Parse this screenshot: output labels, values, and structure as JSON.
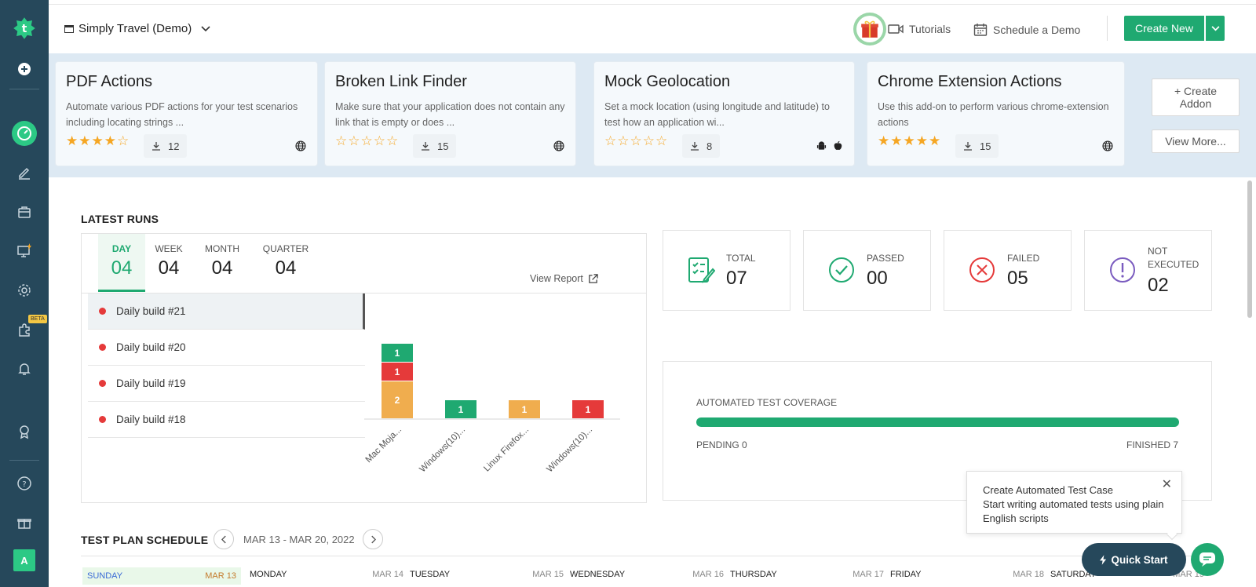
{
  "header": {
    "project_name": "Simply Travel (Demo)",
    "tutorials": "Tutorials",
    "schedule_demo": "Schedule a Demo",
    "create_new": "Create New"
  },
  "sidebar": {
    "avatar_letter": "A",
    "beta_badge": "BETA"
  },
  "addons": [
    {
      "title": "PDF Actions",
      "desc": "Automate various PDF actions for your test scenarios including locating strings ...",
      "stars": "★★★★☆",
      "downloads": "12",
      "platform": "web"
    },
    {
      "title": "Broken Link Finder",
      "desc": "Make sure that your application does not contain any link that is empty or does ...",
      "stars": "☆☆☆☆☆",
      "downloads": "15",
      "platform": "web"
    },
    {
      "title": "Mock Geolocation",
      "desc": "Set a mock location (using longitude and latitude) to test how an application wi...",
      "stars": "☆☆☆☆☆",
      "downloads": "8",
      "platform": "android-apple"
    },
    {
      "title": "Chrome Extension Actions",
      "desc": "Use this add-on to perform various chrome-extension actions",
      "stars": "★★★★★",
      "downloads": "15",
      "platform": "web"
    }
  ],
  "addon_buttons": {
    "create": "+ Create Addon",
    "view_more": "View More..."
  },
  "latest_runs": {
    "title": "LATEST RUNS",
    "tabs": [
      {
        "label": "DAY",
        "value": "04"
      },
      {
        "label": "WEEK",
        "value": "04"
      },
      {
        "label": "MONTH",
        "value": "04"
      },
      {
        "label": "QUARTER",
        "value": "04"
      }
    ],
    "view_report": "View Report",
    "builds": [
      "Daily build #21",
      "Daily build #20",
      "Daily build #19",
      "Daily build #18"
    ]
  },
  "chart_data": {
    "type": "bar",
    "stacked": true,
    "categories": [
      "Mac Moja...",
      "Windows(10)...",
      "Linux Firefox...",
      "Windows(10)..."
    ],
    "series": [
      {
        "color": "#f0ad4e",
        "values": [
          2,
          0,
          1,
          0
        ]
      },
      {
        "color": "#e53a3a",
        "values": [
          1,
          0,
          0,
          1
        ]
      },
      {
        "color": "#1fa971",
        "values": [
          1,
          1,
          0,
          0
        ]
      }
    ]
  },
  "stats": {
    "total_label": "TOTAL",
    "total": "07",
    "passed_label": "PASSED",
    "passed": "00",
    "failed_label": "FAILED",
    "failed": "05",
    "not_executed_label_1": "NOT",
    "not_executed_label_2": "EXECUTED",
    "not_executed": "02"
  },
  "coverage": {
    "title": "AUTOMATED TEST COVERAGE",
    "pending": "PENDING 0",
    "finished": "FINISHED 7",
    "fraction": 1.0
  },
  "test_plan": {
    "title": "TEST PLAN SCHEDULE",
    "range": "MAR 13 - MAR 20, 2022",
    "days": [
      {
        "name": "SUNDAY",
        "date": "MAR 13"
      },
      {
        "name": "MONDAY",
        "date": "MAR 14"
      },
      {
        "name": "TUESDAY",
        "date": "MAR 15"
      },
      {
        "name": "WEDNESDAY",
        "date": "MAR 16"
      },
      {
        "name": "THURSDAY",
        "date": "MAR 17"
      },
      {
        "name": "FRIDAY",
        "date": "MAR 18"
      },
      {
        "name": "SATURDAY",
        "date": "MAR 19"
      }
    ]
  },
  "popup": {
    "title": "Create Automated Test Case",
    "body": "Start writing automated tests using plain English scripts"
  },
  "quick_start": "Quick Start",
  "colors": {
    "sidebar": "#26485b",
    "accent": "#1fa971",
    "failed": "#e53a3a",
    "warning": "#f0ad4e",
    "not_executed": "#7a5bbf"
  }
}
